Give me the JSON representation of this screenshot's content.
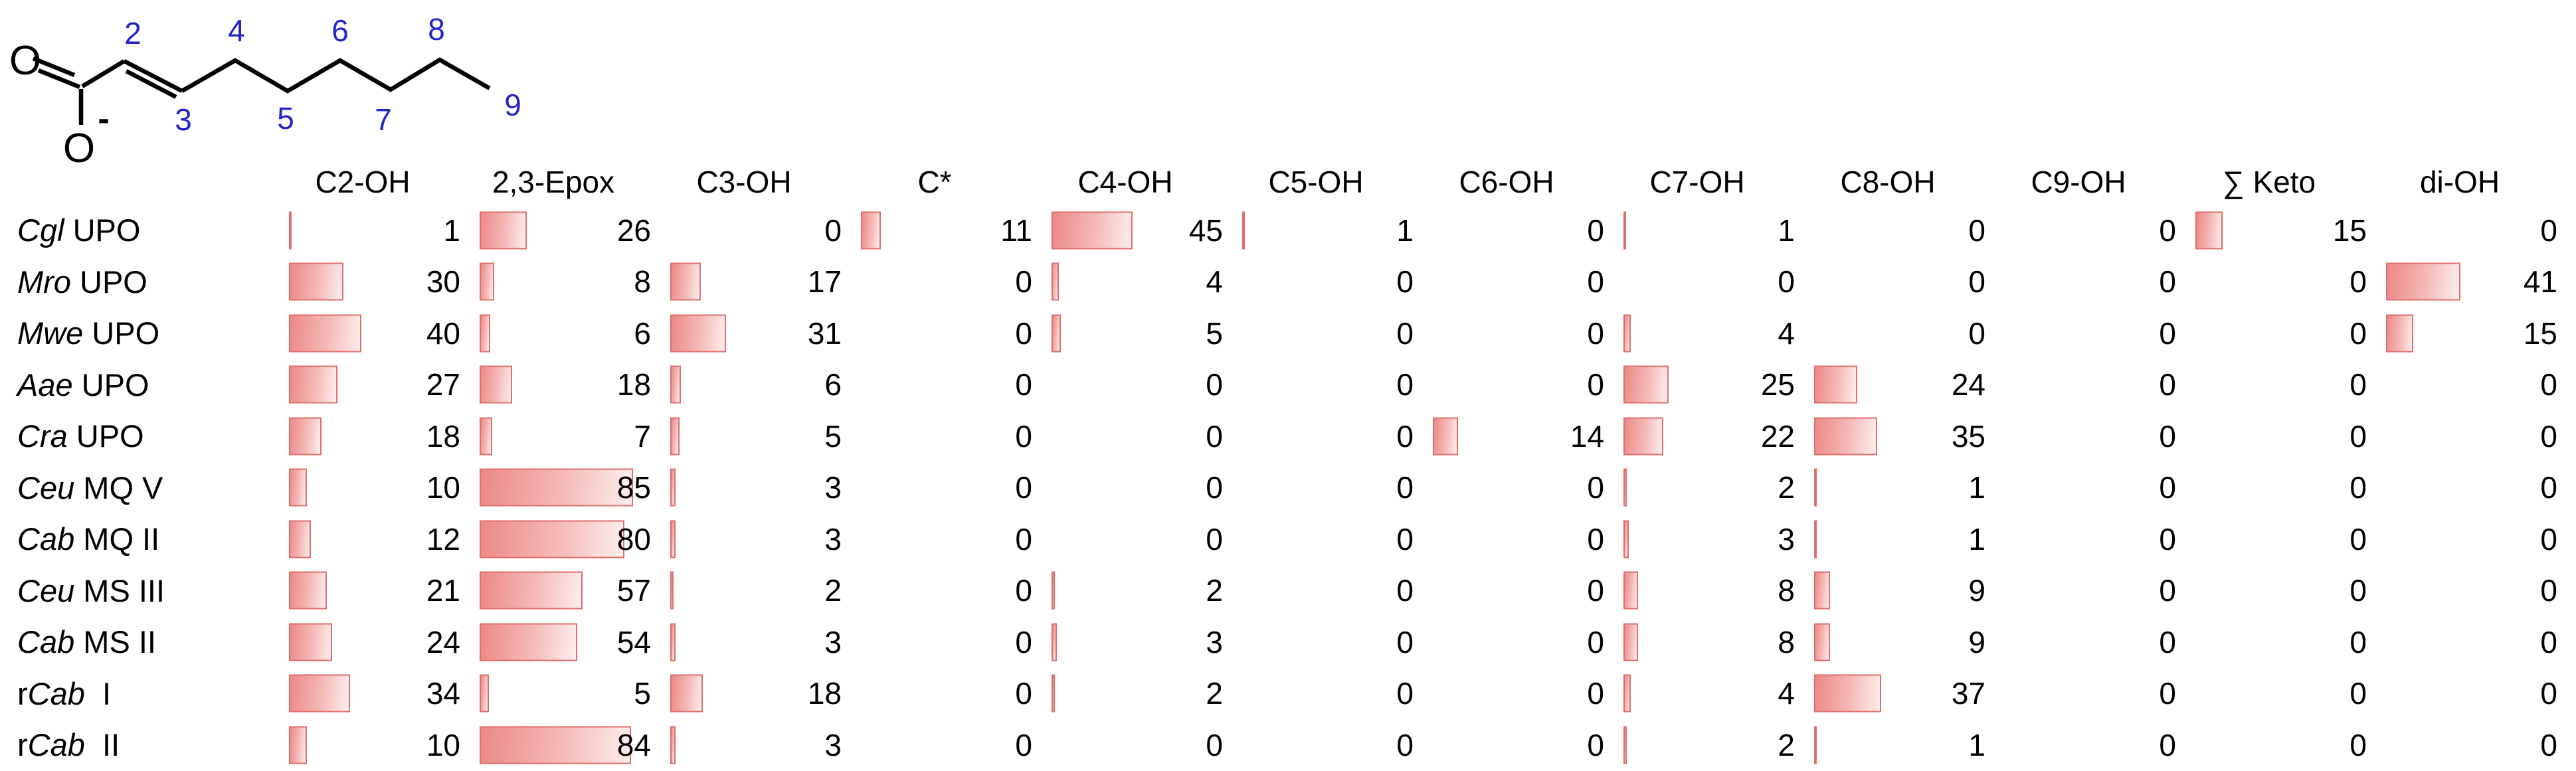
{
  "structure": {
    "top_oxygen_label": "O",
    "bottom_oxygen_label": "O",
    "charge_sign": "-",
    "carbon_numbers_top": [
      "2",
      "4",
      "6",
      "8"
    ],
    "carbon_numbers_bottom": [
      "3",
      "5",
      "7",
      "9"
    ],
    "number_color": "#2323cc",
    "bond_color": "#000000"
  },
  "colors": {
    "bar_border": "#e06e6c",
    "bar_fill_dark": "#ec8987",
    "bar_fill_mid": "#f5bab8",
    "bar_fill_light": "#fdeeed",
    "text": "#000000",
    "background": "#ffffff"
  },
  "chart_data": {
    "type": "table",
    "columns": [
      "C2-OH",
      "2,3-Epox",
      "C3-OH",
      "C*",
      "C4-OH",
      "C5-OH",
      "C6-OH",
      "C7-OH",
      "C8-OH",
      "C9-OH",
      "∑ Keto",
      "di-OH"
    ],
    "value_range": [
      0,
      100
    ],
    "bars": "horizontal data bars proportional to cell value, drawn left of each right-aligned number",
    "rows": [
      {
        "label_parts": [
          {
            "t": "Cgl",
            "i": 1
          },
          {
            "t": " UPO",
            "i": 0
          }
        ],
        "values": [
          1,
          26,
          0,
          11,
          45,
          1,
          0,
          1,
          0,
          0,
          15,
          0
        ]
      },
      {
        "label_parts": [
          {
            "t": "Mro",
            "i": 1
          },
          {
            "t": " UPO",
            "i": 0
          }
        ],
        "values": [
          30,
          8,
          17,
          0,
          4,
          0,
          0,
          0,
          0,
          0,
          0,
          41
        ]
      },
      {
        "label_parts": [
          {
            "t": "Mwe",
            "i": 1
          },
          {
            "t": " UPO",
            "i": 0
          }
        ],
        "values": [
          40,
          6,
          31,
          0,
          5,
          0,
          0,
          4,
          0,
          0,
          0,
          15
        ]
      },
      {
        "label_parts": [
          {
            "t": "Aae",
            "i": 1
          },
          {
            "t": " UPO",
            "i": 0
          }
        ],
        "values": [
          27,
          18,
          6,
          0,
          0,
          0,
          0,
          25,
          24,
          0,
          0,
          0
        ]
      },
      {
        "label_parts": [
          {
            "t": "Cra",
            "i": 1
          },
          {
            "t": " UPO",
            "i": 0
          }
        ],
        "values": [
          18,
          7,
          5,
          0,
          0,
          0,
          14,
          22,
          35,
          0,
          0,
          0
        ]
      },
      {
        "label_parts": [
          {
            "t": "Ceu",
            "i": 1
          },
          {
            "t": " MQ V",
            "i": 0
          }
        ],
        "values": [
          10,
          85,
          3,
          0,
          0,
          0,
          0,
          2,
          1,
          0,
          0,
          0
        ]
      },
      {
        "label_parts": [
          {
            "t": "Cab",
            "i": 1
          },
          {
            "t": " MQ II",
            "i": 0
          }
        ],
        "values": [
          12,
          80,
          3,
          0,
          0,
          0,
          0,
          3,
          1,
          0,
          0,
          0
        ]
      },
      {
        "label_parts": [
          {
            "t": "Ceu",
            "i": 1
          },
          {
            "t": " MS III",
            "i": 0
          }
        ],
        "values": [
          21,
          57,
          2,
          0,
          2,
          0,
          0,
          8,
          9,
          0,
          0,
          0
        ]
      },
      {
        "label_parts": [
          {
            "t": "Cab",
            "i": 1
          },
          {
            "t": " MS II",
            "i": 0
          }
        ],
        "values": [
          24,
          54,
          3,
          0,
          3,
          0,
          0,
          8,
          9,
          0,
          0,
          0
        ]
      },
      {
        "label_parts": [
          {
            "t": "r",
            "i": 0
          },
          {
            "t": "Cab",
            "i": 1
          },
          {
            "t": "  I",
            "i": 0
          }
        ],
        "values": [
          34,
          5,
          18,
          0,
          2,
          0,
          0,
          4,
          37,
          0,
          0,
          0
        ]
      },
      {
        "label_parts": [
          {
            "t": "r",
            "i": 0
          },
          {
            "t": "Cab",
            "i": 1
          },
          {
            "t": "  II",
            "i": 0
          }
        ],
        "values": [
          10,
          84,
          3,
          0,
          0,
          0,
          0,
          2,
          1,
          0,
          0,
          0
        ]
      }
    ]
  }
}
